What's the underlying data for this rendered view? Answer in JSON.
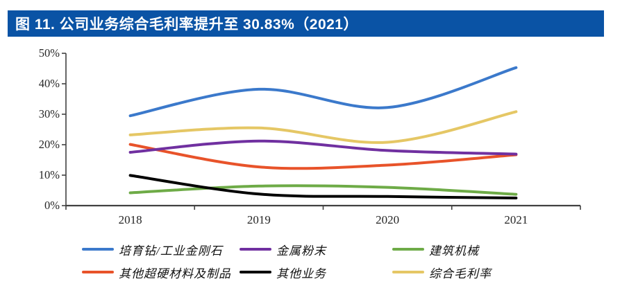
{
  "figure": {
    "title": "图 11. 公司业务综合毛利率提升至 30.83%（2021）",
    "title_bar_color": "#0A53A5"
  },
  "chart_data": {
    "type": "line",
    "smooth": true,
    "title": "公司业务综合毛利率提升至 30.83%（2021）",
    "categories": [
      "2018",
      "2019",
      "2020",
      "2021"
    ],
    "series": [
      {
        "key": "cultivated-diamond-industrial-diamond",
        "name": "培育钻/工业金刚石",
        "color": "#3B79CB",
        "values": [
          29.5,
          38.2,
          32.2,
          45.3
        ]
      },
      {
        "key": "other-superhard-materials",
        "name": "其他超硬材料及制品",
        "color": "#E8532A",
        "values": [
          20.1,
          12.7,
          13.3,
          16.7
        ]
      },
      {
        "key": "metal-powder",
        "name": "金属粉末",
        "color": "#7030A0",
        "values": [
          17.5,
          21.2,
          18.1,
          16.9
        ]
      },
      {
        "key": "construction-machinery",
        "name": "建筑机械",
        "color": "#6EAB47",
        "values": [
          4.2,
          6.4,
          6.0,
          3.7
        ]
      },
      {
        "key": "other-business",
        "name": "其他业务",
        "color": "#000000",
        "values": [
          9.9,
          3.8,
          3.0,
          2.5
        ]
      },
      {
        "key": "overall-gross-margin",
        "name": "综合毛利率",
        "color": "#E5C765",
        "values": [
          23.2,
          25.5,
          20.8,
          30.83
        ]
      }
    ],
    "ylim": [
      0,
      50
    ],
    "y_ticks": [
      "0%",
      "10%",
      "20%",
      "30%",
      "40%",
      "50%"
    ],
    "grid": false,
    "legend_position": "bottom",
    "legend_rows": [
      [
        "培育钻/工业金刚石",
        "金属粉末",
        "建筑机械"
      ],
      [
        "其他超硬材料及制品",
        "其他业务",
        "综合毛利率"
      ]
    ],
    "axis_color": "#404040"
  }
}
